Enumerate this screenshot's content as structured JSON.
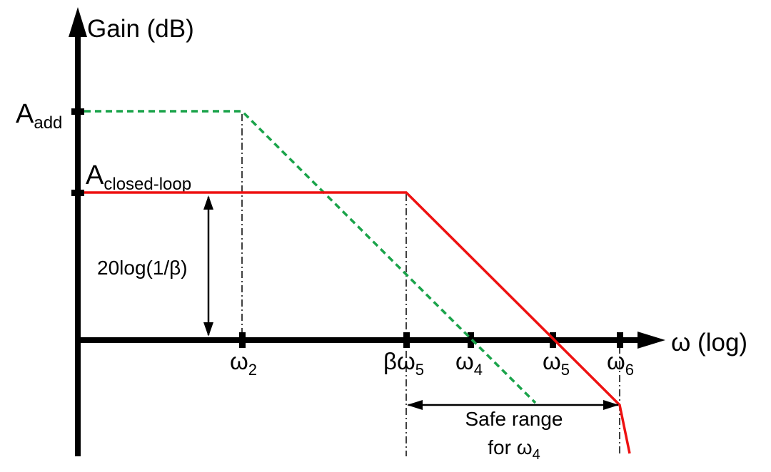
{
  "axes": {
    "y_label": "Gain (dB)",
    "x_label": "ω (log)"
  },
  "y_ticks": {
    "a_add": {
      "main": "A",
      "sub": "add"
    },
    "a_closed_loop": {
      "main": "A",
      "sub": "closed-loop"
    }
  },
  "x_ticks": {
    "w2": {
      "main": "ω",
      "sub": "2"
    },
    "beta_w5": {
      "main": "βω",
      "sub": "5"
    },
    "w4": {
      "main": "ω",
      "sub": "4"
    },
    "w5": {
      "main": "ω",
      "sub": "5"
    },
    "w6": {
      "main": "ω",
      "sub": "6"
    }
  },
  "annotations": {
    "feedback_gap": "20log(1/β)",
    "safe_range_line1": "Safe range",
    "safe_range_line2_main": "for ω",
    "safe_range_line2_sub": "4"
  },
  "colors": {
    "open_loop_curve": "#1aa34a",
    "closed_loop_curve": "#ee1111",
    "axis": "#000000"
  }
}
